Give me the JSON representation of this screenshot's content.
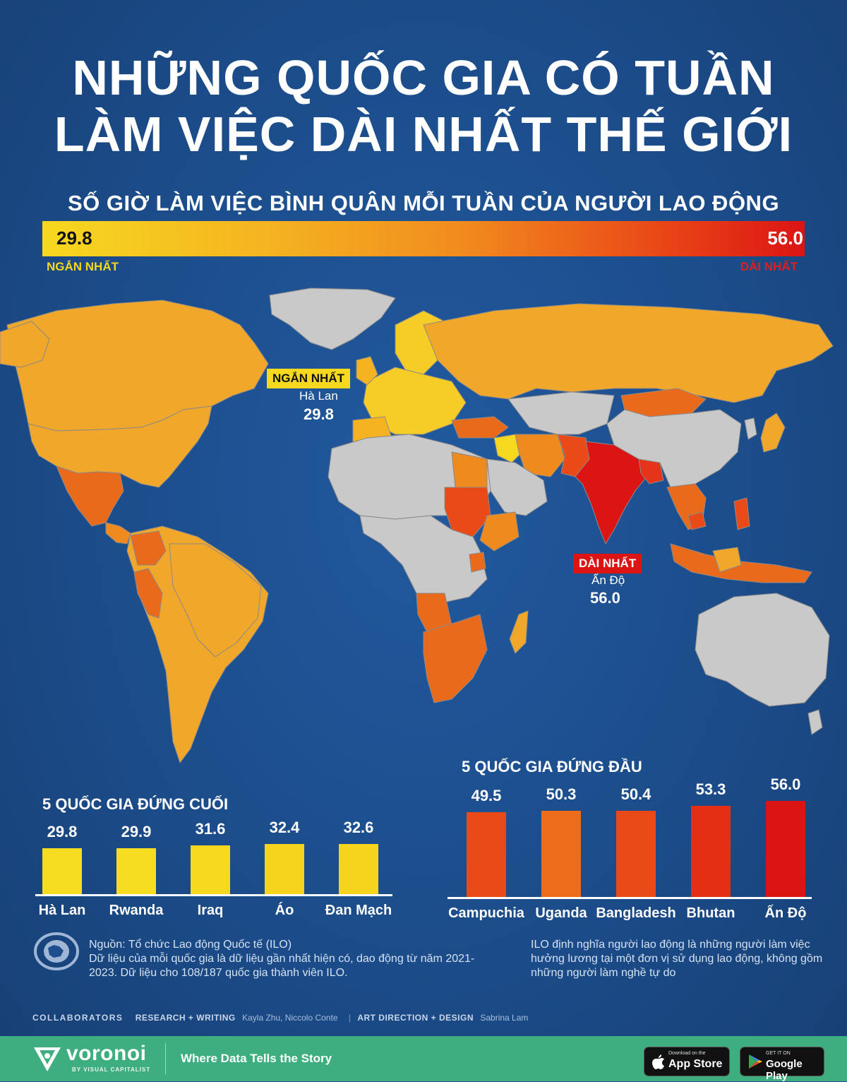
{
  "title_line1": "NHỮNG QUỐC GIA CÓ TUẦN",
  "title_line2": "LÀM VIỆC DÀI NHẤT THẾ GIỚI",
  "subtitle": "SỐ GIỜ LÀM VIỆC BÌNH QUÂN MỖI TUẦN CỦA NGƯỜI LAO ĐỘNG",
  "legend": {
    "min_value": "29.8",
    "max_value": "56.0",
    "min_label": "NGẮN NHẤT",
    "max_label": "DÀI NHẤT",
    "colors": [
      "#f6d81f",
      "#f5b321",
      "#f18b1e",
      "#ea4a17",
      "#dc1414"
    ]
  },
  "map": {
    "no_data_color": "#c9c9c9",
    "shortest": {
      "tag": "NGẮN NHẤT",
      "country": "Hà Lan",
      "value": "29.8",
      "tag_color": "#f6d81f"
    },
    "longest": {
      "tag": "DÀI NHẤT",
      "country": "Ấn Độ",
      "value": "56.0",
      "tag_color": "#dc1414"
    }
  },
  "chart_data": [
    {
      "type": "bar",
      "title": "5 QUỐC GIA ĐỨNG CUỐI",
      "categories": [
        "Hà Lan",
        "Rwanda",
        "Iraq",
        "Áo",
        "Đan Mạch"
      ],
      "values": [
        29.8,
        29.9,
        31.6,
        32.4,
        32.6
      ],
      "value_labels": [
        "29.8",
        "29.9",
        "31.6",
        "32.4",
        "32.6"
      ],
      "colors": [
        "#f6dd22",
        "#f6dd22",
        "#f6d81f",
        "#f6d41e",
        "#f6d41e"
      ],
      "ylim": [
        0,
        56
      ]
    },
    {
      "type": "bar",
      "title": "5 QUỐC GIA ĐỨNG ĐẦU",
      "categories": [
        "Campuchia",
        "Uganda",
        "Bangladesh",
        "Bhutan",
        "Ấn Độ"
      ],
      "values": [
        49.5,
        50.3,
        50.4,
        53.3,
        56.0
      ],
      "value_labels": [
        "49.5",
        "50.3",
        "50.4",
        "53.3",
        "56.0"
      ],
      "colors": [
        "#ea4a17",
        "#ee6d1c",
        "#ea4a17",
        "#e52f15",
        "#dc1414"
      ],
      "ylim": [
        0,
        56
      ]
    }
  ],
  "source": {
    "line1": "Nguồn: Tổ chức Lao động Quốc tế (ILO)",
    "line2": "Dữ liệu của mỗi quốc gia là dữ liệu gần nhất hiện có, dao động từ năm 2021-2023. Dữ liệu cho 108/187 quốc gia thành viên ILO."
  },
  "note": "ILO định nghĩa người lao động là những người làm việc hưởng lương tại một đơn vị sử dụng lao động, không gồm những người làm nghề tự do",
  "collaborators": {
    "label": "COLLABORATORS",
    "research_label": "RESEARCH + WRITING",
    "research_names": "Kayla Zhu, Niccolo Conte",
    "design_label": "ART DIRECTION + DESIGN",
    "design_names": "Sabrina Lam"
  },
  "footer": {
    "brand": "voronoi",
    "brand_sub": "BY VISUAL CAPITALIST",
    "tagline": "Where Data Tells the Story",
    "appstore_small": "Download on the",
    "appstore_big": "App Store",
    "googleplay_small": "GET IT ON",
    "googleplay_big": "Google Play"
  }
}
